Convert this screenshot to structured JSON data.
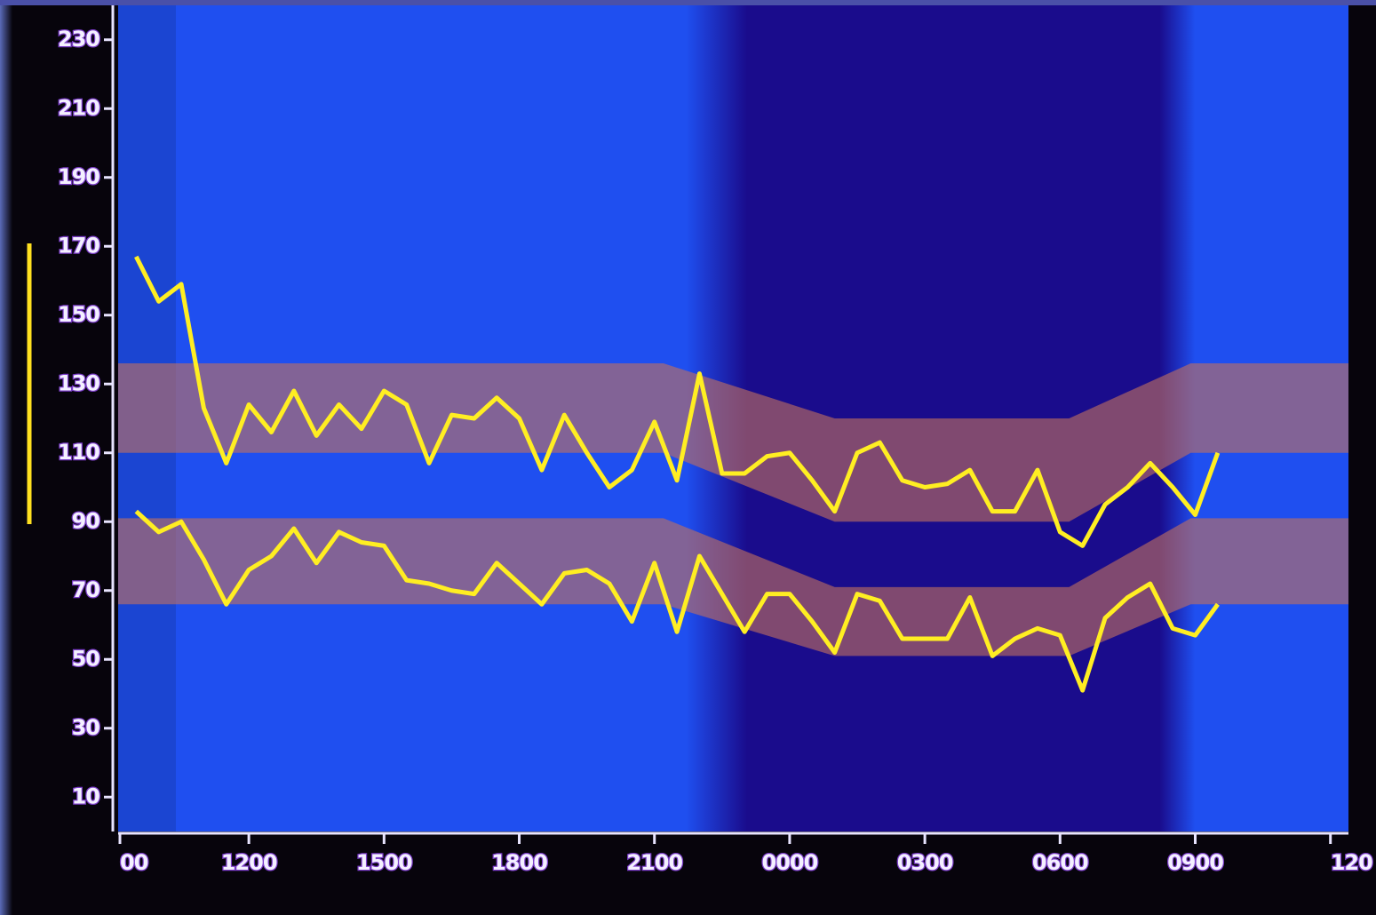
{
  "chart_data": {
    "type": "line",
    "x": [
      9.5,
      10,
      10.5,
      11,
      11.5,
      12,
      12.5,
      13,
      13.5,
      14,
      14.5,
      15,
      15.5,
      16,
      16.5,
      17,
      17.5,
      18,
      18.5,
      19,
      19.5,
      20,
      20.5,
      21,
      21.5,
      22,
      22.5,
      23,
      23.5,
      24,
      24.5,
      25,
      25.5,
      26,
      26.5,
      27,
      27.5,
      28,
      28.5,
      29,
      29.5,
      30,
      30.5,
      31,
      31.5,
      32,
      32.5,
      33,
      33.5
    ],
    "series": [
      {
        "color": "#ffee22",
        "values": [
          167,
          154,
          159,
          123,
          107,
          124,
          116,
          128,
          115,
          124,
          117,
          128,
          124,
          107,
          121,
          120,
          126,
          120,
          105,
          121,
          110,
          100,
          105,
          119,
          102,
          133,
          104,
          104,
          109,
          110,
          102,
          93,
          110,
          113,
          102,
          100,
          101,
          105,
          93,
          93,
          105,
          87,
          83,
          95,
          100,
          107,
          100,
          92,
          110
        ]
      },
      {
        "color": "#ffee22",
        "values": [
          93,
          87,
          90,
          79,
          66,
          76,
          80,
          88,
          78,
          87,
          84,
          83,
          73,
          72,
          70,
          69,
          78,
          72,
          66,
          75,
          76,
          72,
          61,
          78,
          58,
          80,
          69,
          58,
          69,
          69,
          61,
          52,
          69,
          67,
          56,
          56,
          56,
          68,
          51,
          56,
          59,
          57,
          41,
          62,
          68,
          72,
          59,
          57,
          66
        ]
      }
    ],
    "bands": [
      {
        "color": "#c07060",
        "x": [
          9.1,
          21.2,
          25,
          30.2,
          32.9,
          36.4
        ],
        "low": [
          110,
          110,
          90,
          90,
          110,
          110
        ],
        "high": [
          136,
          136,
          120,
          120,
          136,
          136
        ]
      },
      {
        "color": "#c07060",
        "x": [
          9.1,
          21.2,
          25,
          30.2,
          32.9,
          36.4
        ],
        "low": [
          66,
          66,
          51,
          51,
          66,
          66
        ],
        "high": [
          91,
          91,
          71,
          71,
          91,
          91
        ]
      }
    ],
    "night": [
      21.7,
      33
    ],
    "background": "#1f4ff0",
    "night_color": "#1a0c8c",
    "xlim": [
      9.1,
      36.4
    ],
    "ylim": [
      0,
      240
    ],
    "xticks": [
      {
        "value": 9,
        "label": "00"
      },
      {
        "value": 12,
        "label": "1200"
      },
      {
        "value": 15,
        "label": "1500"
      },
      {
        "value": 18,
        "label": "1800"
      },
      {
        "value": 21,
        "label": "2100"
      },
      {
        "value": 24,
        "label": "0000"
      },
      {
        "value": 27,
        "label": "0300"
      },
      {
        "value": 30,
        "label": "0600"
      },
      {
        "value": 33,
        "label": "0900"
      },
      {
        "value": 36,
        "label": "120"
      }
    ],
    "yticks": [
      10,
      30,
      50,
      70,
      90,
      110,
      130,
      150,
      170,
      190,
      210,
      230
    ]
  }
}
